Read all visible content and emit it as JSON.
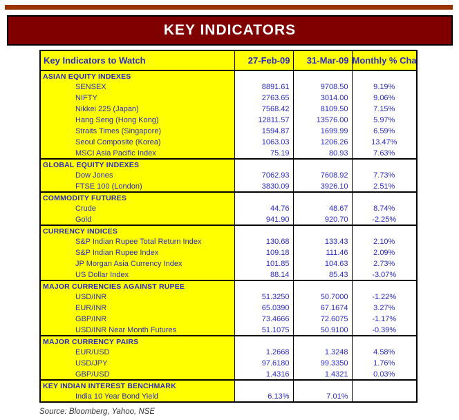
{
  "page": {
    "title": "KEY INDICATORS",
    "source_note": "Source: Bloomberg, Yahoo, NSE"
  },
  "colors": {
    "accent_bar": "#993300",
    "title_background": "#800000",
    "title_text": "#FFFFFF",
    "cell_yellow": "#FFFF00",
    "text_blue": "#2929C6",
    "border": "#000000"
  },
  "table": {
    "columns": [
      "Key Indicators to Watch",
      "27-Feb-09",
      "31-Mar-09",
      "Monthly % Change"
    ],
    "sections": [
      {
        "header": "ASIAN EQUITY INDEXES",
        "rows": [
          {
            "label": "SENSEX",
            "feb": "8891.61",
            "mar": "9708.50",
            "change": "9.19%"
          },
          {
            "label": "NIFTY",
            "feb": "2763.65",
            "mar": "3014.00",
            "change": "9.06%"
          },
          {
            "label": "Nikkei 225 (Japan)",
            "feb": "7568.42",
            "mar": "8109.50",
            "change": "7.15%"
          },
          {
            "label": "Hang Seng (Hong Kong)",
            "feb": "12811.57",
            "mar": "13576.00",
            "change": "5.97%"
          },
          {
            "label": "Straits Times (Singapore)",
            "feb": "1594.87",
            "mar": "1699.99",
            "change": "6.59%"
          },
          {
            "label": "Seoul Composite (Korea)",
            "feb": "1063.03",
            "mar": "1206.26",
            "change": "13.47%"
          },
          {
            "label": "MSCI Asia Pacific Index",
            "feb": "75.19",
            "mar": "80.93",
            "change": "7.63%"
          }
        ]
      },
      {
        "header": "GLOBAL EQUITY INDEXES",
        "rows": [
          {
            "label": "Dow Jones",
            "feb": "7062.93",
            "mar": "7608.92",
            "change": "7.73%"
          },
          {
            "label": "FTSE 100 (London)",
            "feb": "3830.09",
            "mar": "3926.10",
            "change": "2.51%"
          }
        ]
      },
      {
        "header": "COMMODITY FUTURES",
        "rows": [
          {
            "label": "Crude",
            "feb": "44.76",
            "mar": "48.67",
            "change": "8.74%"
          },
          {
            "label": "Gold",
            "feb": "941.90",
            "mar": "920.70",
            "change": "-2.25%"
          }
        ]
      },
      {
        "header": "CURRENCY INDICES",
        "rows": [
          {
            "label": "S&P Indian Rupee Total Return Index",
            "feb": "130.68",
            "mar": "133.43",
            "change": "2.10%"
          },
          {
            "label": "S&P Indian Rupee Index",
            "feb": "109.18",
            "mar": "111.46",
            "change": "2.09%"
          },
          {
            "label": "JP Morgan Asia Currency Index",
            "feb": "101.85",
            "mar": "104.63",
            "change": "2.73%"
          },
          {
            "label": "US Dollar Index",
            "feb": "88.14",
            "mar": "85.43",
            "change": "-3.07%"
          }
        ]
      },
      {
        "header": "MAJOR CURRENCIES AGAINST RUPEE",
        "rows": [
          {
            "label": "USD/INR",
            "feb": "51.3250",
            "mar": "50.7000",
            "change": "-1.22%"
          },
          {
            "label": "EUR/INR",
            "feb": "65.0390",
            "mar": "67.1674",
            "change": "3.27%"
          },
          {
            "label": "GBP/INR",
            "feb": "73.4666",
            "mar": "72.6075",
            "change": "-1.17%"
          },
          {
            "label": "USD/INR Near Month Futures",
            "feb": "51.1075",
            "mar": "50.9100",
            "change": "-0.39%"
          }
        ]
      },
      {
        "header": "MAJOR CURRENCY PAIRS",
        "rows": [
          {
            "label": "EUR/USD",
            "feb": "1.2668",
            "mar": "1.3248",
            "change": "4.58%"
          },
          {
            "label": "USD/JPY",
            "feb": "97.6180",
            "mar": "99.3350",
            "change": "1.76%"
          },
          {
            "label": "GBP/USD",
            "feb": "1.4316",
            "mar": "1.4321",
            "change": "0.03%"
          }
        ]
      },
      {
        "header": "KEY INDIAN INTEREST BENCHMARK",
        "rows": [
          {
            "label": "India 10 Year Bond Yield",
            "feb": "6.13%",
            "mar": "7.01%",
            "change": ""
          }
        ]
      }
    ]
  }
}
